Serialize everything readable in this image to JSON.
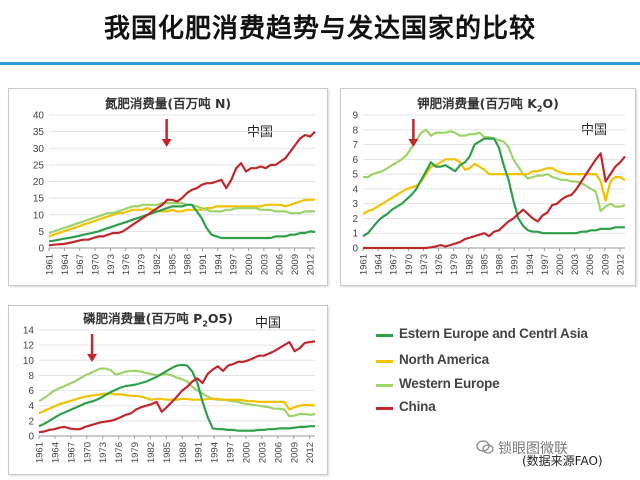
{
  "slide": {
    "title": "我国化肥消费趋势与发达国家的比较",
    "watermark": "锁眼图微联",
    "source_note": "(数据来源FAO)"
  },
  "colors": {
    "eeca": "#2ea04a",
    "north_america": "#f2c200",
    "western_europe": "#9ed36a",
    "china": "#c0282e",
    "title_rule": "#2e9bd6",
    "arrow": "#c0282e"
  },
  "legend": {
    "items": [
      {
        "key": "eeca",
        "label": "Estern Europe and Centrl Asia"
      },
      {
        "key": "north_america",
        "label": "North America"
      },
      {
        "key": "western_europe",
        "label": "Western Europe"
      },
      {
        "key": "china",
        "label": "China"
      }
    ]
  },
  "chart_data": [
    {
      "id": "nitrogen",
      "type": "line",
      "title_main": "氮肥消费量(百万吨  ",
      "title_sym": "N",
      "title_sub": "",
      "title_end": ")",
      "china_label": "中国",
      "arrow_year": 1984,
      "ylim": [
        0,
        40
      ],
      "yticks": [
        0,
        5,
        10,
        15,
        20,
        25,
        30,
        35,
        40
      ],
      "x_ticks": [
        "1961",
        "1964",
        "1967",
        "1970",
        "1973",
        "1976",
        "1979",
        "1982",
        "1985",
        "1988",
        "1991",
        "1994",
        "1997",
        "2000",
        "2003",
        "2006",
        "2009",
        "2012"
      ],
      "grid": true,
      "series": [
        {
          "key": "north_america",
          "name": "North America",
          "values": [
            3.5,
            4,
            4.5,
            5,
            5.5,
            6,
            6.5,
            7,
            7.5,
            8,
            8.5,
            9,
            9.5,
            10,
            10.5,
            10.5,
            11,
            11.5,
            11.5,
            11.5,
            12,
            11.5,
            11,
            11,
            11,
            11.5,
            11,
            11,
            11.5,
            11.5,
            11.5,
            11.5,
            12,
            12,
            12.5,
            12.5,
            12.5,
            12.5,
            12.5,
            12.5,
            12.5,
            12.5,
            12.5,
            12.5,
            13,
            13,
            13,
            13,
            12.5,
            13,
            13.5,
            14,
            14.5,
            14.5,
            14.5
          ]
        },
        {
          "key": "western_europe",
          "name": "Western Europe",
          "values": [
            4.5,
            5,
            5.5,
            6,
            6.5,
            7,
            7.5,
            8,
            8.5,
            9,
            9.5,
            10,
            10.5,
            10.5,
            11,
            11.5,
            12,
            12.5,
            12.5,
            13,
            13,
            13,
            13,
            13.5,
            13.5,
            13.5,
            13.5,
            13.5,
            13,
            13,
            12.5,
            12,
            11.5,
            11,
            11,
            11,
            11.5,
            11.5,
            12,
            12,
            12,
            12,
            12,
            11.5,
            11.5,
            11.5,
            11,
            11,
            11,
            10.5,
            10.5,
            10.5,
            11,
            11,
            11
          ]
        },
        {
          "key": "eeca",
          "name": "Estern Europe and Centrl Asia",
          "values": [
            2,
            2.2,
            2.5,
            2.8,
            3,
            3.3,
            3.6,
            4,
            4.3,
            4.6,
            5,
            5.5,
            6,
            6.5,
            7,
            7.5,
            8,
            8.5,
            9,
            9.5,
            10,
            10.5,
            11,
            11.5,
            12,
            12.5,
            12.5,
            12.5,
            13,
            13,
            11,
            9,
            6,
            4,
            3.5,
            3,
            3,
            3,
            3,
            3,
            3,
            3,
            3,
            3,
            3,
            3,
            3.5,
            3.5,
            3.5,
            4,
            4,
            4.5,
            4.5,
            5,
            4.8
          ]
        },
        {
          "key": "china",
          "name": "China",
          "values": [
            0.8,
            1,
            1.1,
            1.2,
            1.5,
            1.8,
            2.2,
            2.5,
            2.5,
            3,
            3.5,
            3.5,
            4,
            4.5,
            4.5,
            5,
            6,
            7,
            8,
            9,
            10,
            11,
            12,
            13,
            14.5,
            14.5,
            14,
            15,
            16.5,
            17.5,
            18,
            19,
            19.5,
            19.5,
            20,
            20.5,
            18,
            20.5,
            24,
            25.5,
            23,
            24,
            24,
            24.5,
            24,
            25,
            25,
            26,
            27,
            29,
            31,
            33,
            34,
            33.5,
            35
          ]
        }
      ]
    },
    {
      "id": "potash",
      "type": "line",
      "title_main": "钾肥消费量(百万吨  ",
      "title_sym": "K",
      "title_sub": "2",
      "title_end": "O)",
      "china_label": "中国",
      "arrow_year": 1971,
      "ylim": [
        0,
        9
      ],
      "yticks": [
        0,
        1,
        2,
        3,
        4,
        5,
        6,
        7,
        8,
        9
      ],
      "x_ticks": [
        "1961",
        "1964",
        "1967",
        "1970",
        "1973",
        "1976",
        "1979",
        "1982",
        "1985",
        "1988",
        "1991",
        "1994",
        "1997",
        "2000",
        "2003",
        "2006",
        "2009",
        "2012"
      ],
      "grid": true,
      "series": [
        {
          "key": "western_europe",
          "name": "Western Europe",
          "values": [
            4.8,
            4.8,
            5,
            5.1,
            5.2,
            5.4,
            5.6,
            5.8,
            6,
            6.3,
            6.8,
            7.3,
            7.8,
            8,
            7.6,
            7.8,
            7.8,
            7.8,
            7.9,
            7.8,
            7.6,
            7.6,
            7.7,
            7.7,
            7.8,
            7.5,
            7.5,
            7.4,
            7.3,
            7.2,
            6.8,
            6,
            5.5,
            5,
            4.7,
            4.8,
            4.9,
            4.9,
            5,
            4.8,
            4.7,
            4.6,
            4.6,
            4.5,
            4.5,
            4.4,
            4.2,
            4,
            3.8,
            2.5,
            2.8,
            3,
            2.8,
            2.8,
            2.9
          ]
        },
        {
          "key": "north_america",
          "name": "North America",
          "values": [
            2.3,
            2.5,
            2.6,
            2.8,
            3,
            3.2,
            3.4,
            3.6,
            3.8,
            4,
            4.1,
            4.2,
            4.5,
            5,
            5.5,
            5.6,
            5.8,
            6,
            6,
            6,
            5.8,
            5.3,
            5.4,
            5.7,
            5.5,
            5.3,
            5,
            5,
            5,
            5,
            5,
            5,
            5,
            5,
            5,
            5.2,
            5.2,
            5.3,
            5.4,
            5.4,
            5.2,
            5.1,
            5,
            5,
            5,
            5,
            5,
            5,
            5,
            4.5,
            3.2,
            4.5,
            4.8,
            4.8,
            4.6
          ]
        },
        {
          "key": "eeca",
          "name": "Estern Europe and Centrl Asia",
          "values": [
            0.8,
            1,
            1.4,
            1.8,
            2.1,
            2.3,
            2.6,
            2.8,
            3,
            3.3,
            3.6,
            4,
            4.6,
            5.2,
            5.8,
            5.5,
            5.5,
            5.6,
            5.4,
            5.2,
            5.6,
            5.8,
            6.2,
            7,
            7.2,
            7.4,
            7.4,
            7.4,
            6.8,
            5.6,
            4.6,
            3.2,
            2,
            1.5,
            1.2,
            1.1,
            1.1,
            1,
            1,
            1,
            1,
            1,
            1,
            1,
            1,
            1.1,
            1.1,
            1.2,
            1.2,
            1.3,
            1.3,
            1.3,
            1.4,
            1.4,
            1.4
          ]
        },
        {
          "key": "china",
          "name": "China",
          "values": [
            0,
            0,
            0,
            0,
            0,
            0,
            0,
            0,
            0,
            0,
            0,
            0,
            0,
            0,
            0.05,
            0.1,
            0.2,
            0.1,
            0.2,
            0.3,
            0.4,
            0.6,
            0.7,
            0.8,
            0.9,
            1,
            0.8,
            1.1,
            1.2,
            1.5,
            1.8,
            2,
            2.3,
            2.6,
            2.3,
            2,
            1.8,
            2.2,
            2.4,
            2.9,
            3,
            3.3,
            3.5,
            3.6,
            4,
            4.5,
            5,
            5.5,
            6,
            6.4,
            4.5,
            5,
            5.5,
            5.8,
            6.2
          ]
        }
      ]
    },
    {
      "id": "phosphate",
      "type": "line",
      "title_main": "磷肥消费量(百万吨  ",
      "title_sym": "P",
      "title_sub": "2",
      "title_end": "O5)",
      "china_label": "中国",
      "arrow_year": 1971,
      "ylim": [
        0,
        14
      ],
      "yticks": [
        0,
        2,
        4,
        6,
        8,
        10,
        12,
        14
      ],
      "x_ticks": [
        "1961",
        "1964",
        "1967",
        "1970",
        "1973",
        "1976",
        "1979",
        "1982",
        "1985",
        "1988",
        "1991",
        "1994",
        "1997",
        "2000",
        "2003",
        "2006",
        "2009",
        "2012"
      ],
      "grid": true,
      "series": [
        {
          "key": "western_europe",
          "name": "Western Europe",
          "values": [
            4.6,
            5,
            5.5,
            6,
            6.3,
            6.6,
            6.9,
            7.2,
            7.6,
            8,
            8.3,
            8.6,
            8.9,
            8.9,
            8.7,
            8.1,
            8.3,
            8.5,
            8.6,
            8.6,
            8.5,
            8.3,
            8.2,
            8,
            8.1,
            8.2,
            8,
            7.7,
            7.5,
            7.2,
            6.5,
            6,
            5.6,
            5.2,
            4.9,
            4.8,
            4.8,
            4.7,
            4.6,
            4.5,
            4.3,
            4.2,
            4.1,
            4,
            3.9,
            3.8,
            3.6,
            3.6,
            3.5,
            2.6,
            2.7,
            2.9,
            2.9,
            2.8,
            2.9
          ]
        },
        {
          "key": "north_america",
          "name": "North America",
          "values": [
            3,
            3.3,
            3.6,
            3.9,
            4.2,
            4.4,
            4.6,
            4.8,
            5,
            5.2,
            5.3,
            5.4,
            5.5,
            5.6,
            5.6,
            5.5,
            5.5,
            5.4,
            5.3,
            5.3,
            5.2,
            5,
            4.8,
            4.9,
            4.9,
            4.8,
            4.8,
            4.8,
            4.9,
            4.9,
            4.8,
            4.8,
            4.8,
            4.9,
            4.9,
            4.9,
            4.8,
            4.8,
            4.8,
            4.8,
            4.7,
            4.6,
            4.6,
            4.5,
            4.5,
            4.5,
            4.5,
            4.5,
            4.5,
            3.5,
            3.8,
            4,
            4.1,
            4.1,
            4
          ]
        },
        {
          "key": "eeca",
          "name": "Estern Europe and Centrl Asia",
          "values": [
            1.3,
            1.6,
            2,
            2.4,
            2.8,
            3.1,
            3.4,
            3.7,
            4,
            4.3,
            4.5,
            4.7,
            5,
            5.4,
            5.8,
            6.1,
            6.4,
            6.6,
            6.7,
            6.8,
            7,
            7.2,
            7.5,
            7.8,
            8.2,
            8.6,
            9,
            9.3,
            9.4,
            9.3,
            8.5,
            7,
            4.5,
            2.5,
            1,
            0.9,
            0.9,
            0.8,
            0.8,
            0.7,
            0.7,
            0.7,
            0.7,
            0.8,
            0.8,
            0.9,
            0.9,
            1,
            1,
            1,
            1.1,
            1.2,
            1.2,
            1.3,
            1.3
          ]
        },
        {
          "key": "china",
          "name": "China",
          "values": [
            0.5,
            0.6,
            0.8,
            0.9,
            1.1,
            1.2,
            1,
            0.9,
            0.9,
            1.2,
            1.4,
            1.6,
            1.8,
            1.9,
            2,
            2.2,
            2.5,
            2.8,
            3,
            3.5,
            3.8,
            4,
            4.2,
            4.5,
            3.2,
            3.8,
            4.5,
            5.2,
            6,
            6.5,
            7.2,
            7.6,
            7,
            8.2,
            8.8,
            9.2,
            8.6,
            9.3,
            9.5,
            9.8,
            9.8,
            10,
            10.3,
            10.6,
            10.6,
            10.9,
            11.2,
            11.6,
            12,
            12.4,
            11.2,
            11.6,
            12.3,
            12.4,
            12.5
          ]
        }
      ]
    }
  ]
}
